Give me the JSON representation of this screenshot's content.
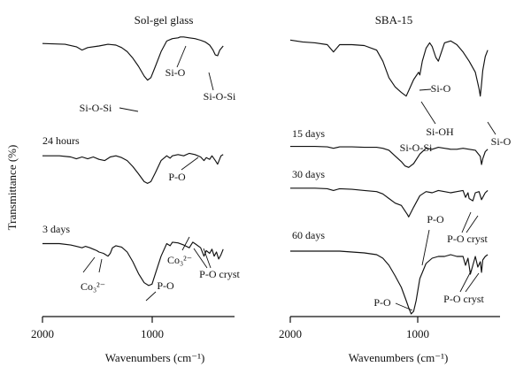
{
  "chart_data": [
    {
      "panel": "left",
      "type": "line",
      "title": "Sol-gel glass",
      "xlabel": "Wavenumbers (cm⁻¹)",
      "ylabel": "Transmittance (%)",
      "xlim": [
        2000,
        300
      ],
      "xdirection": "reversed",
      "xticks": [
        2000,
        1000
      ],
      "xtick_labels": [
        "2000",
        "1000"
      ],
      "y_ticks": "none",
      "series": [
        {
          "name": "",
          "x": [
            2000,
            1800,
            1700,
            1650,
            1600,
            1500,
            1420,
            1350,
            1300,
            1250,
            1200,
            1150,
            1100,
            1070,
            1040,
            1000,
            950,
            900,
            850,
            800,
            780,
            750,
            700,
            650,
            600,
            560,
            520,
            490,
            470,
            450,
            430,
            400
          ],
          "y": [
            90,
            89,
            86,
            82,
            85,
            87,
            89,
            88,
            85,
            80,
            72,
            62,
            50,
            45,
            48,
            62,
            80,
            93,
            96,
            97,
            98,
            98,
            97,
            96,
            94,
            92,
            88,
            82,
            76,
            75,
            82,
            87
          ]
        },
        {
          "name": "24 hours",
          "x": [
            2000,
            1850,
            1750,
            1700,
            1650,
            1600,
            1550,
            1500,
            1450,
            1400,
            1350,
            1300,
            1250,
            1200,
            1150,
            1100,
            1070,
            1040,
            1000,
            950,
            900,
            870,
            850,
            800,
            750,
            700,
            650,
            600,
            570,
            550,
            520,
            500,
            470,
            450,
            420,
            400
          ],
          "y": [
            88,
            88,
            86,
            83,
            86,
            83,
            86,
            82,
            80,
            86,
            88,
            85,
            80,
            70,
            58,
            45,
            42,
            45,
            60,
            80,
            88,
            84,
            88,
            90,
            88,
            92,
            90,
            86,
            80,
            85,
            82,
            88,
            80,
            74,
            88,
            90
          ]
        },
        {
          "name": "3 days",
          "x": [
            2000,
            1850,
            1750,
            1700,
            1650,
            1620,
            1580,
            1550,
            1520,
            1500,
            1460,
            1440,
            1420,
            1400,
            1380,
            1350,
            1300,
            1250,
            1200,
            1150,
            1100,
            1060,
            1030,
            1000,
            950,
            900,
            870,
            850,
            800,
            750,
            700,
            670,
            650,
            600,
            570,
            550,
            520,
            500,
            480,
            460,
            440,
            420,
            400
          ],
          "y": [
            88,
            88,
            86,
            84,
            82,
            84,
            82,
            80,
            78,
            76,
            74,
            72,
            70,
            74,
            82,
            85,
            83,
            76,
            62,
            45,
            32,
            28,
            30,
            45,
            70,
            88,
            85,
            90,
            89,
            86,
            82,
            90,
            88,
            82,
            70,
            78,
            74,
            80,
            70,
            76,
            66,
            72,
            80
          ]
        }
      ],
      "annotations": [
        "Si-O",
        "Si-O-Si",
        "Si-O-Si",
        "P-O",
        "Co₃²⁻",
        "Co₃²⁻",
        "P-O",
        "P-O cryst"
      ]
    },
    {
      "panel": "right",
      "type": "line",
      "title": "SBA-15",
      "xlabel": "Wavenumbers (cm⁻¹)",
      "ylabel": "",
      "xlim": [
        2000,
        300
      ],
      "xdirection": "reversed",
      "xticks": [
        2000,
        1000
      ],
      "xtick_labels": [
        "2000",
        "1000"
      ],
      "y_ticks": "none",
      "series": [
        {
          "name": "",
          "x": [
            2000,
            1900,
            1800,
            1700,
            1650,
            1600,
            1500,
            1400,
            1300,
            1250,
            1200,
            1150,
            1100,
            1060,
            1040,
            1000,
            960,
            950,
            930,
            900,
            870,
            850,
            820,
            800,
            750,
            700,
            650,
            600,
            550,
            500,
            470,
            460,
            450,
            440,
            420,
            400
          ],
          "y": [
            93,
            91,
            90,
            88,
            80,
            88,
            88,
            87,
            82,
            70,
            52,
            42,
            36,
            32,
            38,
            50,
            58,
            55,
            70,
            84,
            90,
            86,
            74,
            70,
            90,
            92,
            88,
            80,
            70,
            58,
            40,
            32,
            45,
            60,
            75,
            82
          ]
        },
        {
          "name": "15 days",
          "x": [
            2000,
            1800,
            1700,
            1650,
            1600,
            1500,
            1400,
            1300,
            1250,
            1200,
            1150,
            1100,
            1070,
            1040,
            1000,
            950,
            900,
            850,
            800,
            750,
            700,
            650,
            600,
            550,
            500,
            460,
            450,
            440,
            420,
            400
          ],
          "y": [
            86,
            86,
            85,
            82,
            85,
            85,
            84,
            84,
            82,
            78,
            66,
            54,
            45,
            42,
            50,
            70,
            82,
            80,
            84,
            82,
            80,
            80,
            82,
            80,
            78,
            65,
            48,
            60,
            75,
            80
          ]
        },
        {
          "name": "30 days",
          "x": [
            2000,
            1800,
            1700,
            1650,
            1600,
            1500,
            1400,
            1300,
            1250,
            1200,
            1150,
            1100,
            1050,
            1040,
            1000,
            950,
            900,
            850,
            800,
            750,
            700,
            650,
            600,
            580,
            560,
            550,
            520,
            500,
            470,
            450,
            440,
            420,
            400
          ],
          "y": [
            88,
            88,
            87,
            84,
            87,
            86,
            84,
            82,
            78,
            70,
            62,
            58,
            42,
            38,
            55,
            75,
            82,
            80,
            84,
            82,
            80,
            82,
            84,
            72,
            80,
            70,
            66,
            80,
            82,
            68,
            72,
            80,
            84
          ]
        },
        {
          "name": "60 days",
          "x": [
            2000,
            1800,
            1700,
            1600,
            1500,
            1400,
            1300,
            1250,
            1200,
            1150,
            1100,
            1060,
            1040,
            1020,
            1000,
            980,
            950,
            900,
            850,
            800,
            750,
            700,
            650,
            600,
            580,
            560,
            540,
            520,
            500,
            480,
            460,
            450,
            440,
            420,
            400
          ],
          "y": [
            86,
            86,
            86,
            86,
            85,
            84,
            82,
            78,
            70,
            58,
            45,
            30,
            22,
            15,
            18,
            30,
            55,
            72,
            78,
            80,
            80,
            82,
            80,
            80,
            70,
            78,
            60,
            70,
            80,
            68,
            74,
            62,
            76,
            80,
            82
          ]
        }
      ],
      "annotations": [
        "Si-O",
        "Si-OH",
        "Si-O",
        "Si-O-Si",
        "P-O",
        "P-O cryst",
        "P-O",
        "P-O cryst"
      ]
    }
  ]
}
